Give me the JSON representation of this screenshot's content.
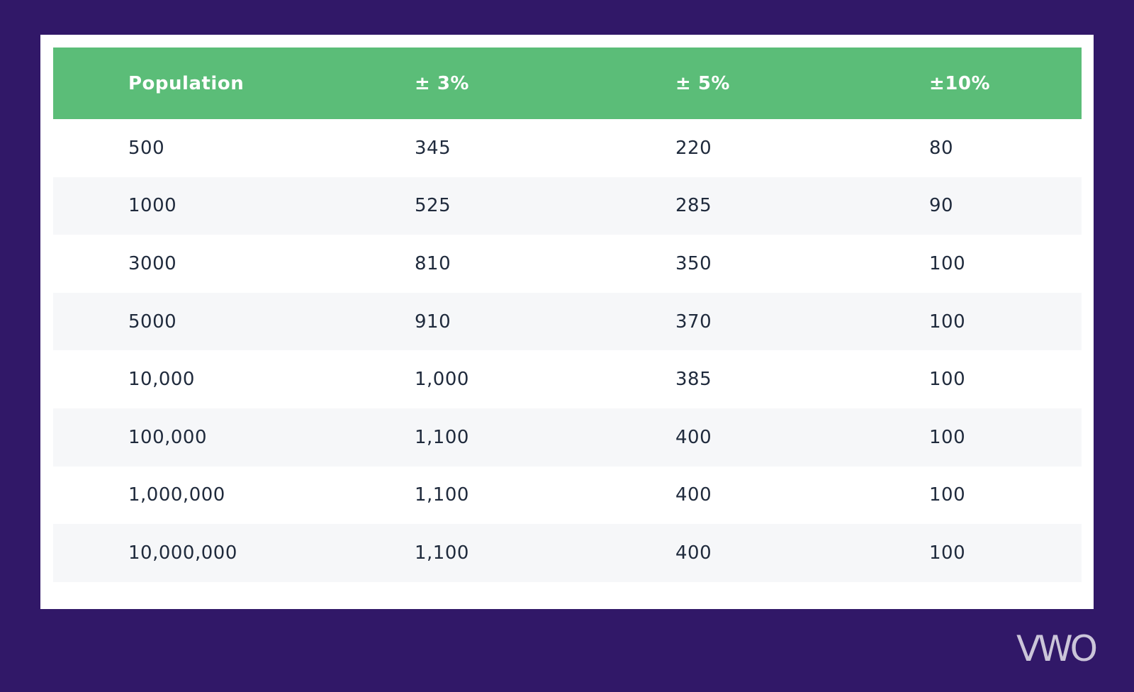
{
  "table": {
    "header": [
      "Population",
      "± 3%",
      "± 5%",
      "±10%"
    ],
    "rows": [
      [
        "500",
        "345",
        "220",
        "80"
      ],
      [
        "1000",
        "525",
        "285",
        "90"
      ],
      [
        "3000",
        "810",
        "350",
        "100"
      ],
      [
        "5000",
        "910",
        "370",
        "100"
      ],
      [
        "10,000",
        "1,000",
        "385",
        "100"
      ],
      [
        "100,000",
        "1,100",
        "400",
        "100"
      ],
      [
        "1,000,000",
        "1,100",
        "400",
        "100"
      ],
      [
        "10,000,000",
        "1,100",
        "400",
        "100"
      ]
    ]
  },
  "logo": "VWO"
}
